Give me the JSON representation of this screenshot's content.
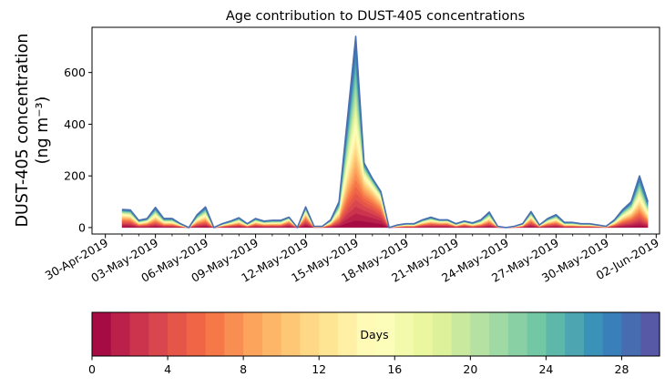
{
  "chart_data": {
    "type": "area",
    "title": "Age contribution to DUST-405 concentrations",
    "ylabel_line1": "DUST-405 concentration",
    "ylabel_line2": "(ng m⁻³)",
    "ylim": [
      -25,
      775
    ],
    "y_ticks": [
      "0",
      "200",
      "400",
      "600"
    ],
    "y_tick_values": [
      0,
      200,
      400,
      600
    ],
    "x_range": [
      "2019-04-30T00:00",
      "2019-06-02T00:00"
    ],
    "xlim_days": [
      -0.8,
      33.2
    ],
    "x_tick_labels": [
      "30-Apr-2019",
      "03-May-2019",
      "06-May-2019",
      "09-May-2019",
      "12-May-2019",
      "15-May-2019",
      "18-May-2019",
      "21-May-2019",
      "24-May-2019",
      "27-May-2019",
      "30-May-2019",
      "02-Jun-2019"
    ],
    "x_tick_days": [
      0,
      3,
      6,
      9,
      12,
      15,
      18,
      21,
      24,
      27,
      30,
      33
    ],
    "sample_interval_hours": 12,
    "first_sample": "2019-05-01T00:00",
    "total_concentration": [
      70,
      68,
      28,
      35,
      78,
      35,
      35,
      15,
      0,
      50,
      80,
      0,
      15,
      25,
      38,
      15,
      35,
      25,
      28,
      28,
      40,
      0,
      80,
      5,
      5,
      30,
      100,
      420,
      740,
      250,
      190,
      140,
      0,
      10,
      15,
      15,
      30,
      40,
      30,
      30,
      15,
      25,
      18,
      30,
      60,
      5,
      0,
      5,
      15,
      62,
      10,
      35,
      50,
      20,
      20,
      15,
      15,
      10,
      5,
      30,
      70,
      100,
      200,
      100
    ],
    "young_age_concentration": [
      40,
      35,
      10,
      15,
      20,
      10,
      10,
      5,
      0,
      15,
      20,
      0,
      5,
      10,
      15,
      5,
      15,
      10,
      10,
      10,
      30,
      0,
      50,
      2,
      2,
      10,
      30,
      50,
      40,
      200,
      170,
      120,
      0,
      3,
      5,
      5,
      15,
      20,
      20,
      20,
      5,
      15,
      5,
      10,
      20,
      2,
      0,
      2,
      5,
      30,
      5,
      15,
      20,
      5,
      5,
      5,
      5,
      5,
      2,
      10,
      25,
      35,
      40,
      10
    ],
    "colorbar": {
      "label": "Days",
      "range": [
        0,
        30
      ],
      "ticks": [
        "0",
        "4",
        "8",
        "12",
        "16",
        "20",
        "24",
        "28"
      ],
      "tick_values": [
        0,
        4,
        8,
        12,
        16,
        20,
        24,
        28
      ],
      "colormap": "Spectral",
      "colors": [
        "#9e0142",
        "#d53e4f",
        "#f46d43",
        "#fdae61",
        "#fee08b",
        "#ffffbf",
        "#e6f598",
        "#abdda4",
        "#66c2a5",
        "#3288bd",
        "#5e4fa2"
      ]
    }
  }
}
